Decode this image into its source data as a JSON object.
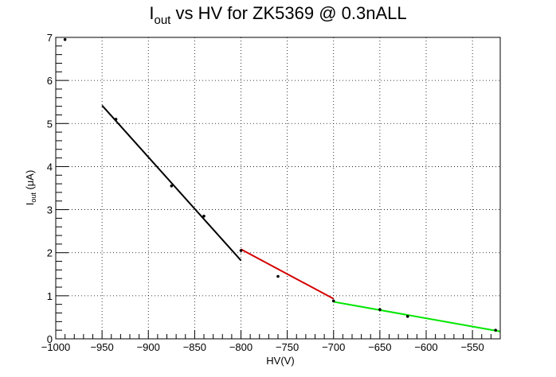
{
  "chart_data": {
    "type": "scatter",
    "title_main": "I",
    "title_sub": "out",
    "title_rest": " vs HV for ZK5369 @ 0.3nALL",
    "xlabel": "HV(V)",
    "ylabel_main": "I",
    "ylabel_sub": "out",
    "ylabel_rest": " (μA)",
    "xlim": [
      -1000,
      -520
    ],
    "ylim": [
      0,
      7
    ],
    "grid": true,
    "xticks": [
      -1000,
      -950,
      -900,
      -850,
      -800,
      -750,
      -700,
      -650,
      -600,
      -550
    ],
    "xtick_labels": [
      "−1000",
      "−950",
      "−900",
      "−850",
      "−800",
      "−750",
      "−700",
      "−650",
      "−600",
      "−550"
    ],
    "yticks": [
      0,
      1,
      2,
      3,
      4,
      5,
      6,
      7
    ],
    "ytick_labels": [
      "0",
      "1",
      "2",
      "3",
      "4",
      "5",
      "6",
      "7"
    ],
    "points": [
      {
        "x": -990,
        "y": 6.95
      },
      {
        "x": -935,
        "y": 5.1
      },
      {
        "x": -875,
        "y": 3.55
      },
      {
        "x": -840,
        "y": 2.85
      },
      {
        "x": -800,
        "y": 2.05
      },
      {
        "x": -760,
        "y": 1.45
      },
      {
        "x": -700,
        "y": 0.88
      },
      {
        "x": -650,
        "y": 0.68
      },
      {
        "x": -620,
        "y": 0.52
      },
      {
        "x": -525,
        "y": 0.2
      }
    ],
    "fits": [
      {
        "color": "#000000",
        "x": [
          -950,
          -800
        ],
        "y": [
          5.42,
          1.82
        ]
      },
      {
        "color": "#d40000",
        "x": [
          -800,
          -700
        ],
        "y": [
          2.08,
          0.93
        ]
      },
      {
        "color": "#00e600",
        "x": [
          -700,
          -520
        ],
        "y": [
          0.86,
          0.17
        ]
      }
    ]
  }
}
